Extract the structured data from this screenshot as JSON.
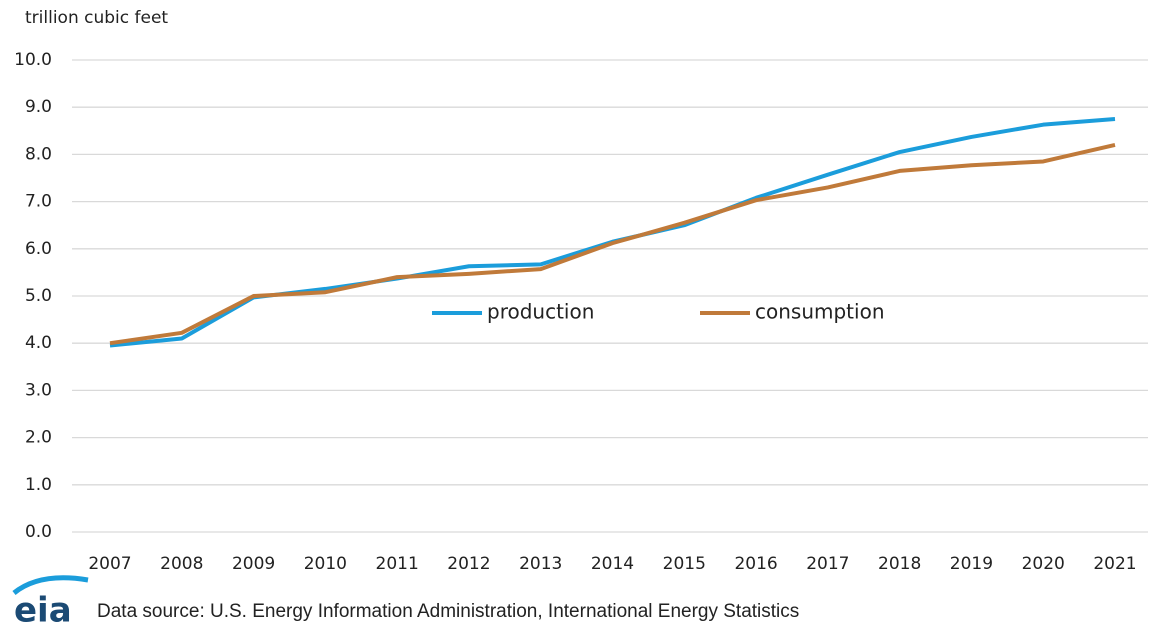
{
  "chart_data": {
    "type": "line",
    "y_axis_label": "trillion cubic feet",
    "source": "Data source: U.S. Energy Information Administration, International Energy Statistics",
    "logo": "eia",
    "categories": [
      "2007",
      "2008",
      "2009",
      "2010",
      "2011",
      "2012",
      "2013",
      "2014",
      "2015",
      "2016",
      "2017",
      "2018",
      "2019",
      "2020",
      "2021"
    ],
    "series": [
      {
        "name": "production",
        "color": "#1b9ddb",
        "values": [
          3.95,
          4.1,
          4.97,
          5.15,
          5.37,
          5.63,
          5.67,
          6.15,
          6.5,
          7.08,
          7.57,
          8.05,
          8.37,
          8.63,
          8.75
        ]
      },
      {
        "name": "consumption",
        "color": "#c07a3a",
        "values": [
          4.0,
          4.22,
          5.0,
          5.08,
          5.4,
          5.47,
          5.57,
          6.12,
          6.55,
          7.03,
          7.3,
          7.65,
          7.77,
          7.85,
          8.2
        ]
      }
    ],
    "ylim": [
      0,
      10
    ],
    "yticks": [
      {
        "value": 0,
        "label": "0.0"
      },
      {
        "value": 1,
        "label": "1.0"
      },
      {
        "value": 2,
        "label": "2.0"
      },
      {
        "value": 3,
        "label": "3.0"
      },
      {
        "value": 4,
        "label": "4.0"
      },
      {
        "value": 5,
        "label": "5.0"
      },
      {
        "value": 6,
        "label": "6.0"
      },
      {
        "value": 7,
        "label": "7.0"
      },
      {
        "value": 8,
        "label": "8.0"
      },
      {
        "value": 9,
        "label": "9.0"
      },
      {
        "value": 10,
        "label": "10.0"
      }
    ],
    "grid": true,
    "legend": "center"
  }
}
